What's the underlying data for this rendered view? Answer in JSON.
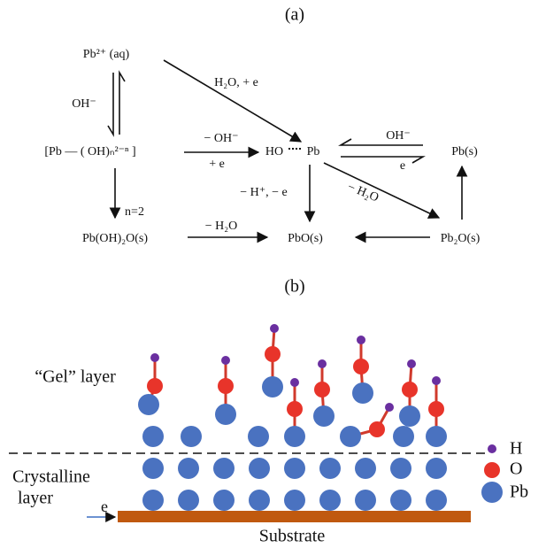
{
  "panel_a": {
    "label": "(a)",
    "nodes": {
      "pb2_aq": "Pb²⁺ (aq)",
      "pb_oh_n": "[Pb — ( OH)ₙ²⁻ⁿ ]",
      "ho": "HO",
      "pb": "Pb",
      "pb_s": "Pb(s)",
      "pb_oh2o": "Pb(OH)₂O(s)",
      "pbo": "PbO(s)",
      "pb2o": "Pb₂O(s)"
    },
    "edges": {
      "pb2_to_hopb": "H₂O, + e",
      "oh_equilibrium": "OH⁻",
      "minus_oh": "− OH⁻",
      "plus_e": "+ e",
      "oh_to_pb_s": "OH⁻",
      "e_from_pb_s": "e",
      "n2": "n=2",
      "minus_h_e": "− H⁺, − e",
      "minus_h2o_diag": "− H₂O",
      "minus_h2o": "− H₂O"
    }
  },
  "panel_b": {
    "label": "(b)",
    "gel_layer": "“Gel” layer",
    "crystalline": "Crystalline",
    "layer": "layer",
    "electron": "e",
    "substrate": "Substrate",
    "legend": {
      "h": "H",
      "o": "O",
      "pb": "Pb"
    }
  }
}
